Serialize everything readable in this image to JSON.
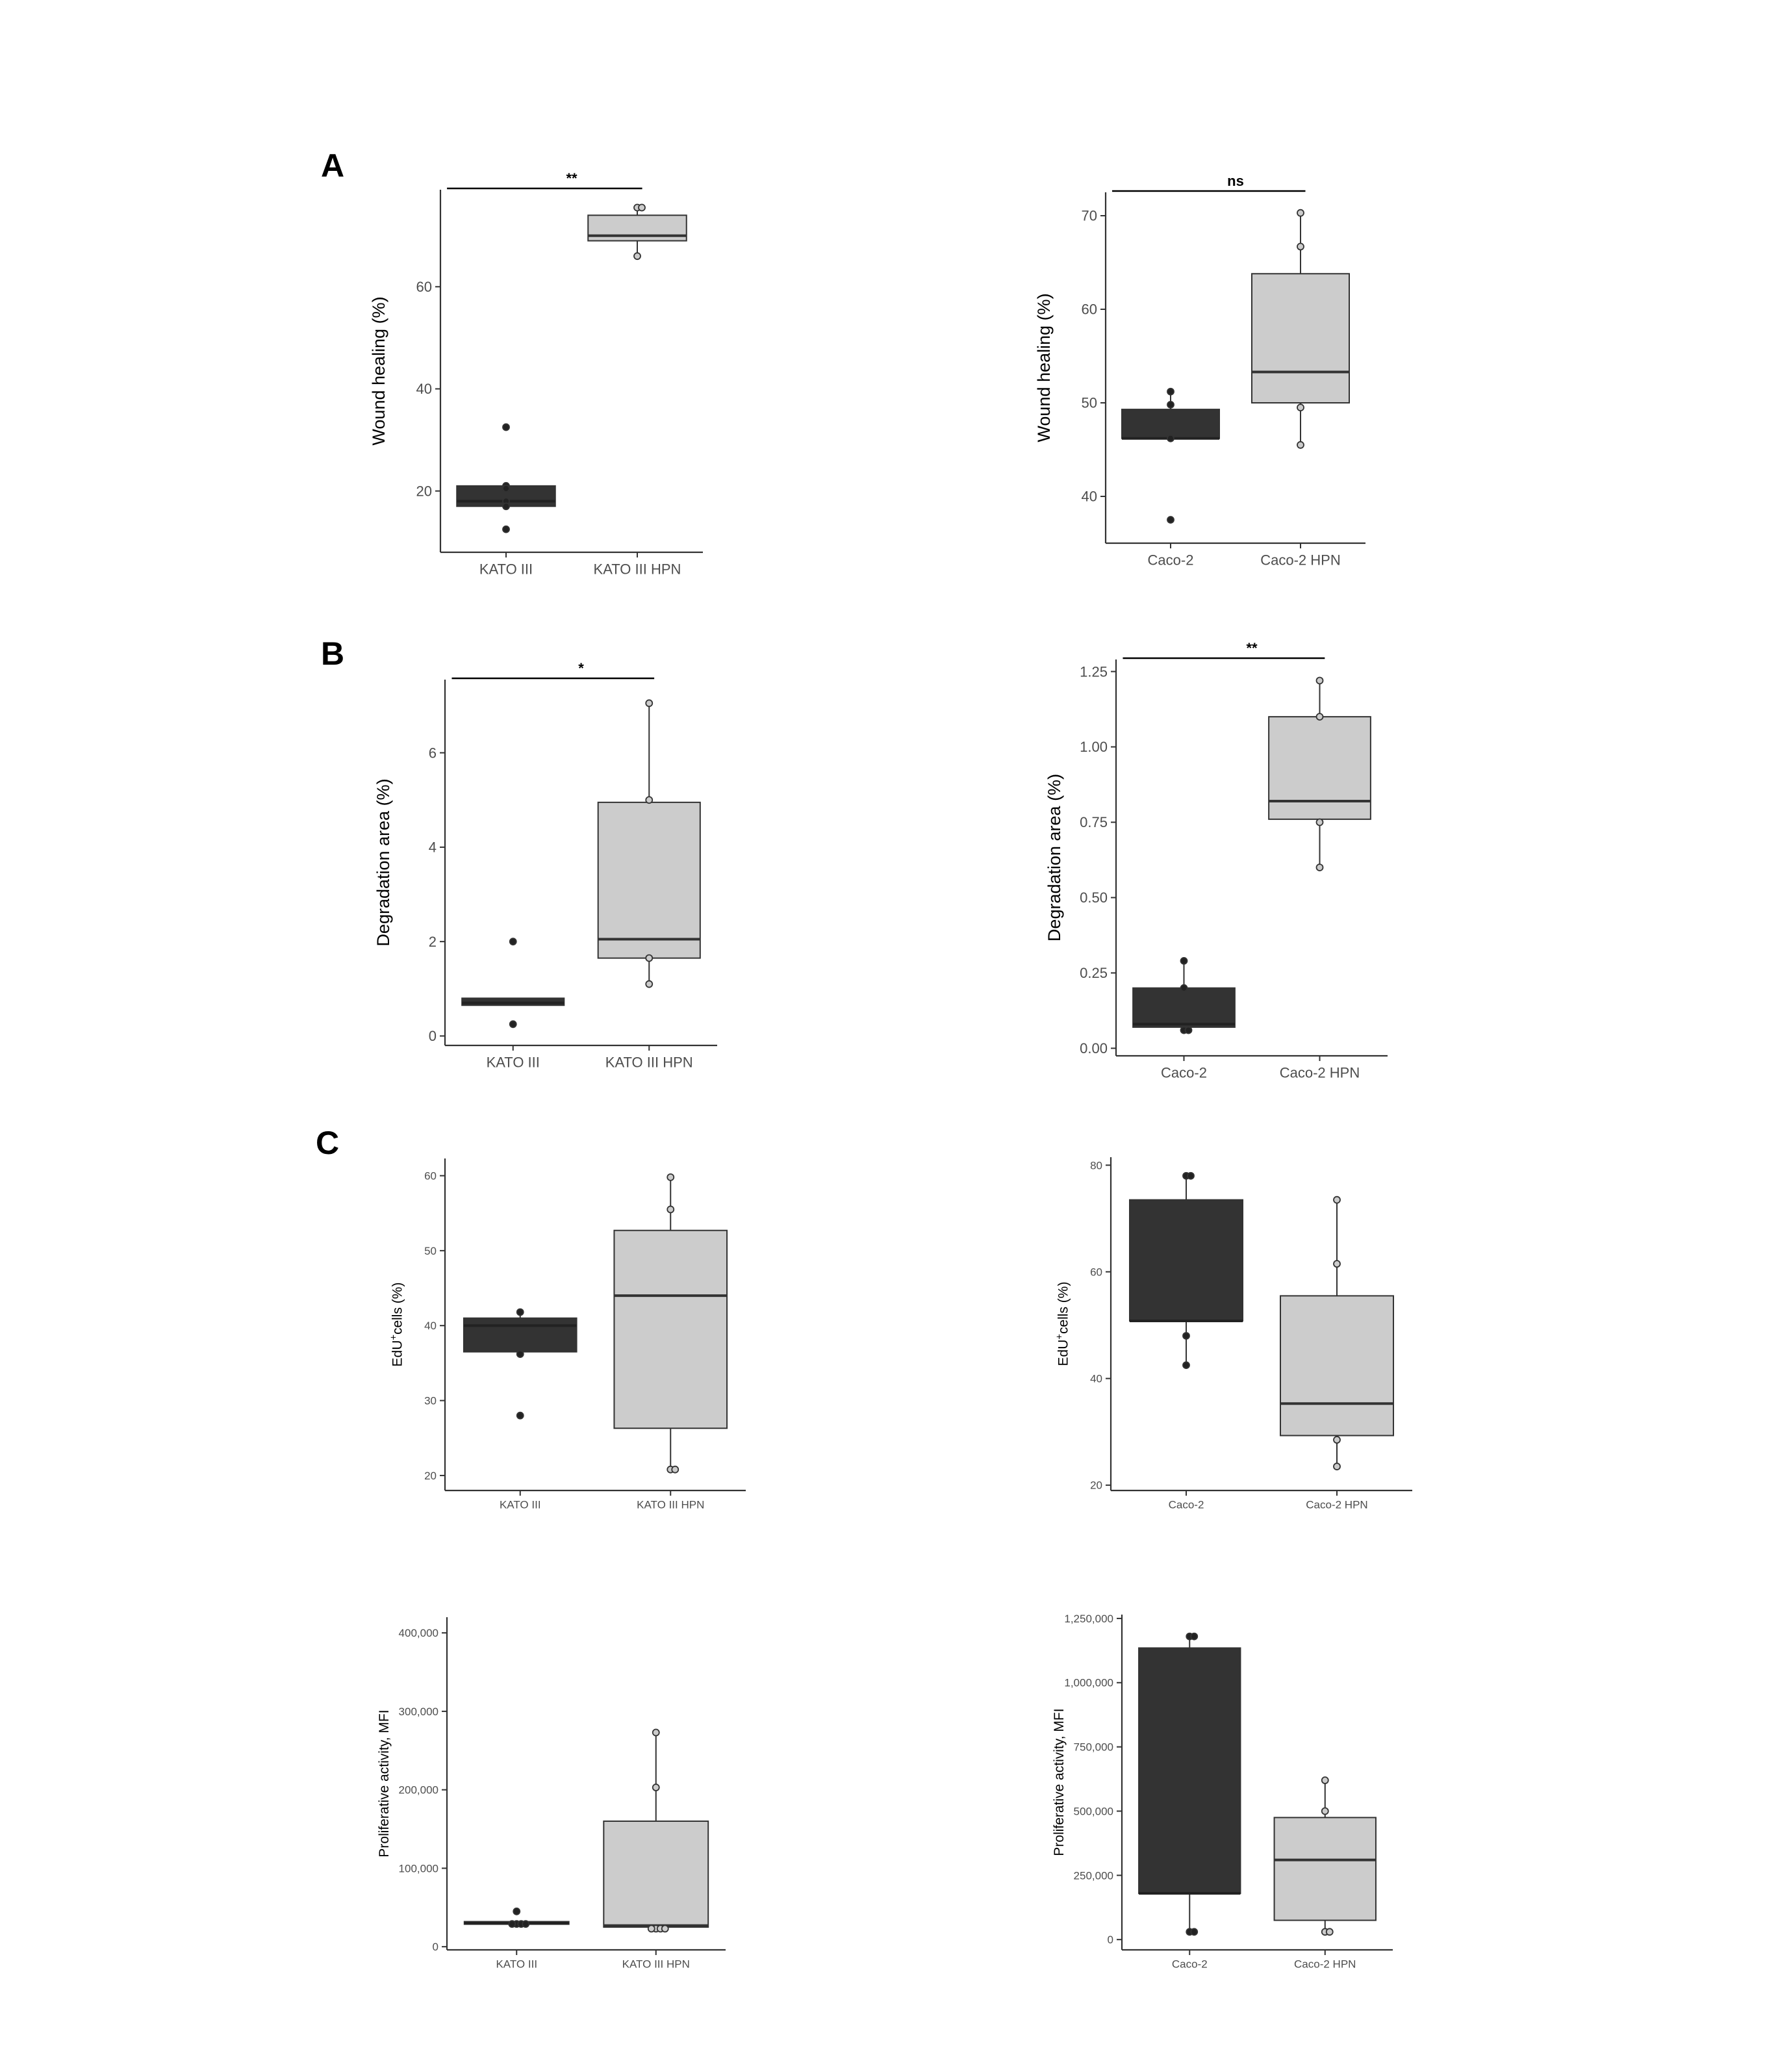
{
  "panels": {
    "a": "A",
    "b": "B",
    "c": "C"
  },
  "colors": {
    "dark_box": "#333333",
    "light_box": "#cccccc",
    "axis": "#333333",
    "tick_label": "#4d4d4d"
  },
  "chart_data": [
    {
      "id": "A1",
      "type": "box",
      "panel": "A",
      "ylabel": "Wound healing (%)",
      "ylim": [
        8,
        79
      ],
      "yticks": [
        20,
        40,
        60
      ],
      "grid": false,
      "categories": [
        "KATO III",
        "KATO III HPN"
      ],
      "boxes": [
        {
          "category": "KATO III",
          "fill": "dark",
          "min": 17,
          "q1": 17,
          "median": 18,
          "q3": 21,
          "max": 21,
          "points": [
            32.5,
            21,
            20.5,
            18,
            17,
            12.5
          ]
        },
        {
          "category": "KATO III HPN",
          "fill": "light",
          "min": 66,
          "q1": 69,
          "median": 70,
          "q3": 74,
          "max": 75.5,
          "points": [
            75.5,
            75.5,
            66
          ]
        }
      ],
      "significance": {
        "label": "**",
        "from": "KATO III",
        "to": "KATO III HPN"
      }
    },
    {
      "id": "A2",
      "type": "box",
      "panel": "A",
      "ylabel": "Wound healing (%)",
      "ylim": [
        35,
        72.5
      ],
      "yticks": [
        40,
        50,
        60,
        70
      ],
      "grid": false,
      "categories": [
        "Caco-2",
        "Caco-2 HPN"
      ],
      "boxes": [
        {
          "category": "Caco-2",
          "fill": "dark",
          "min": 46.2,
          "q1": 46.2,
          "median": 46.2,
          "q3": 49.3,
          "max": 51.2,
          "points": [
            51.2,
            49.8,
            46.2,
            37.5
          ]
        },
        {
          "category": "Caco-2 HPN",
          "fill": "light",
          "min": 45.5,
          "q1": 50,
          "median": 53.3,
          "q3": 63.8,
          "max": 70.3,
          "points": [
            70.3,
            66.7,
            49.5,
            45.5
          ]
        }
      ],
      "significance": {
        "label": "ns",
        "from": "Caco-2",
        "to": "Caco-2 HPN"
      }
    },
    {
      "id": "B1",
      "type": "box",
      "panel": "B",
      "ylabel": "Degradation area (%)",
      "ylim": [
        -0.2,
        7.55
      ],
      "yticks": [
        0,
        2,
        4,
        6
      ],
      "grid": false,
      "categories": [
        "KATO III",
        "KATO III HPN"
      ],
      "boxes": [
        {
          "category": "KATO III",
          "fill": "dark",
          "min": 0.65,
          "q1": 0.65,
          "median": 0.7,
          "q3": 0.8,
          "max": 0.8,
          "points": [
            2.0,
            0.25
          ]
        },
        {
          "category": "KATO III HPN",
          "fill": "light",
          "min": 1.1,
          "q1": 1.65,
          "median": 2.05,
          "q3": 4.95,
          "max": 7.05,
          "points": [
            7.05,
            5.0,
            1.65,
            1.1
          ]
        }
      ],
      "significance": {
        "label": "*",
        "from": "KATO III",
        "to": "KATO III HPN"
      }
    },
    {
      "id": "B2",
      "type": "box",
      "panel": "B",
      "ylabel": "Degradation area (%)",
      "ylim": [
        -0.025,
        1.29
      ],
      "yticks": [
        0.0,
        0.25,
        0.5,
        0.75,
        1.0,
        1.25
      ],
      "ytick_labels": [
        "0.00",
        "0.25",
        "0.50",
        "0.75",
        "1.00",
        "1.25"
      ],
      "grid": false,
      "categories": [
        "Caco-2",
        "Caco-2 HPN"
      ],
      "boxes": [
        {
          "category": "Caco-2",
          "fill": "dark",
          "min": 0.06,
          "q1": 0.07,
          "median": 0.08,
          "q3": 0.2,
          "max": 0.29,
          "points": [
            0.29,
            0.2,
            0.06,
            0.06
          ]
        },
        {
          "category": "Caco-2 HPN",
          "fill": "light",
          "min": 0.6,
          "q1": 0.76,
          "median": 0.82,
          "q3": 1.1,
          "max": 1.22,
          "points": [
            1.22,
            1.1,
            0.75,
            0.6
          ]
        }
      ],
      "significance": {
        "label": "**",
        "from": "Caco-2",
        "to": "Caco-2 HPN"
      }
    },
    {
      "id": "C1",
      "type": "box",
      "panel": "C",
      "ylabel_main": "EdU",
      "ylabel_sup": "+",
      "ylabel_rest": "cells (%)",
      "ylim": [
        18,
        62.3
      ],
      "yticks": [
        20,
        30,
        40,
        50,
        60
      ],
      "grid": false,
      "categories": [
        "KATO III",
        "KATO III HPN"
      ],
      "boxes": [
        {
          "category": "KATO III",
          "fill": "dark",
          "min": 36.5,
          "q1": 36.5,
          "median": 40,
          "q3": 41,
          "max": 41.8,
          "points": [
            41.8,
            36.2,
            28
          ]
        },
        {
          "category": "KATO III HPN",
          "fill": "light",
          "min": 20.8,
          "q1": 26.3,
          "median": 44,
          "q3": 52.7,
          "max": 59.8,
          "points": [
            59.8,
            55.5,
            20.8,
            20.8
          ]
        }
      ],
      "significance": null
    },
    {
      "id": "C2",
      "type": "box",
      "panel": "C",
      "ylabel_main": "EdU",
      "ylabel_sup": "+",
      "ylabel_rest": "cells (%)",
      "ylim": [
        19,
        81.5
      ],
      "yticks": [
        20,
        40,
        60,
        80
      ],
      "grid": false,
      "categories": [
        "Caco-2",
        "Caco-2 HPN"
      ],
      "boxes": [
        {
          "category": "Caco-2",
          "fill": "dark",
          "min": 42.5,
          "q1": 50.8,
          "median": 50.8,
          "q3": 73.5,
          "max": 78,
          "points": [
            78,
            78,
            48,
            42.5
          ]
        },
        {
          "category": "Caco-2 HPN",
          "fill": "light",
          "min": 23.5,
          "q1": 29.3,
          "median": 35.3,
          "q3": 55.5,
          "max": 73.5,
          "points": [
            73.5,
            61.5,
            28.5,
            23.5
          ]
        }
      ],
      "significance": null
    },
    {
      "id": "C3",
      "type": "box",
      "panel": "C",
      "ylabel": "Proliferative activity, MFI",
      "ylim": [
        -4000,
        420000
      ],
      "yticks": [
        0,
        100000,
        200000,
        300000,
        400000
      ],
      "ytick_labels": [
        "0",
        "100,000",
        "200,000",
        "300,000",
        "400,000"
      ],
      "grid": false,
      "categories": [
        "KATO III",
        "KATO III HPN"
      ],
      "boxes": [
        {
          "category": "KATO III",
          "fill": "dark",
          "min": 29000,
          "q1": 29000,
          "median": 30000,
          "q3": 32000,
          "max": 32000,
          "points": [
            45000,
            29000,
            29000,
            29000,
            29000
          ]
        },
        {
          "category": "KATO III HPN",
          "fill": "light",
          "min": 23000,
          "q1": 25000,
          "median": 27000,
          "q3": 160000,
          "max": 273000,
          "points": [
            273000,
            203000,
            23000,
            23000,
            23000,
            23000
          ]
        }
      ],
      "significance": null
    },
    {
      "id": "C4",
      "type": "box",
      "panel": "C",
      "ylabel": "Proliferative activity, MFI",
      "ylim": [
        -40000,
        1265000
      ],
      "yticks": [
        0,
        250000,
        500000,
        750000,
        1000000,
        1250000
      ],
      "ytick_labels": [
        "0",
        "250,000",
        "500,000",
        "750,000",
        "1,000,000",
        "1,250,000"
      ],
      "grid": false,
      "categories": [
        "Caco-2",
        "Caco-2 HPN"
      ],
      "boxes": [
        {
          "category": "Caco-2",
          "fill": "dark",
          "min": 30000,
          "q1": 180000,
          "median": 180000,
          "q3": 1135000,
          "max": 1180000,
          "points": [
            1180000,
            1180000,
            30000,
            30000
          ]
        },
        {
          "category": "Caco-2 HPN",
          "fill": "light",
          "min": 30000,
          "q1": 75000,
          "median": 310000,
          "q3": 475000,
          "max": 620000,
          "points": [
            620000,
            500000,
            30000,
            30000
          ]
        }
      ],
      "significance": null
    }
  ]
}
